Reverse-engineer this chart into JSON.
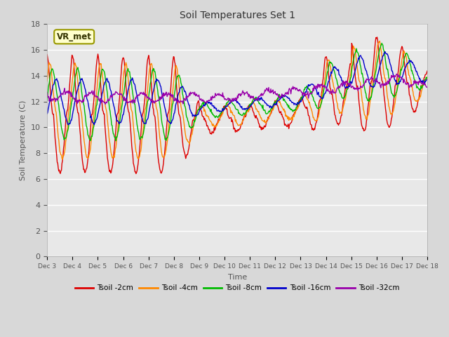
{
  "title": "Soil Temperatures Set 1",
  "xlabel": "Time",
  "ylabel": "Soil Temperature (C)",
  "ylim": [
    0,
    18
  ],
  "yticks": [
    0,
    2,
    4,
    6,
    8,
    10,
    12,
    14,
    16,
    18
  ],
  "colors": {
    "Tsoil -2cm": "#dd0000",
    "Tsoil -4cm": "#ff8800",
    "Tsoil -8cm": "#00bb00",
    "Tsoil -16cm": "#0000cc",
    "Tsoil -32cm": "#9900aa"
  },
  "annotation_text": "VR_met",
  "annotation_box_color": "#ffffcc",
  "annotation_box_edge": "#999900",
  "bg_color": "#d8d8d8",
  "plot_bg_color": "#e8e8e8",
  "xtick_labels": [
    "Dec 3",
    "Dec 4",
    "Dec 5",
    "Dec 6",
    "Dec 7",
    "Dec 8",
    "Dec 9",
    "Dec 10",
    "Dec 11",
    "Dec 12",
    "Dec 13",
    "Dec 14",
    "Dec 15",
    "Dec 16",
    "Dec 17",
    "Dec 18"
  ],
  "linewidth": 1.0,
  "figwidth": 6.4,
  "figheight": 4.8,
  "dpi": 100
}
